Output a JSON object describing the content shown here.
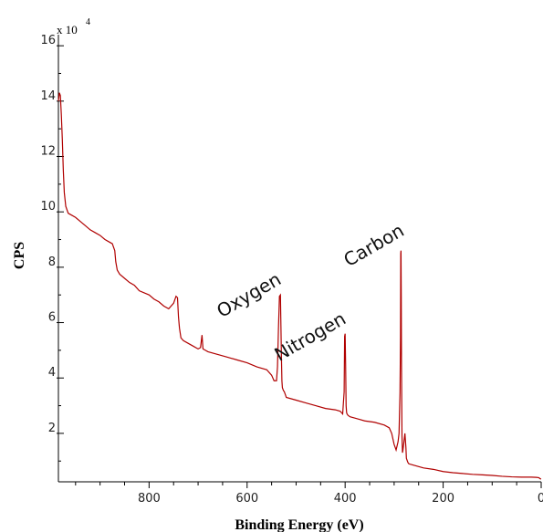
{
  "chart_data": {
    "type": "line",
    "title": "",
    "xlabel": "Binding Energy (eV)",
    "ylabel": "CPS",
    "y_multiplier": {
      "base": "x 10",
      "exponent": "4"
    },
    "x_reversed": true,
    "xlim": [
      985,
      0
    ],
    "ylim": [
      0.25,
      16.4
    ],
    "x_ticks": [
      800,
      600,
      400,
      200,
      0
    ],
    "y_ticks": [
      2,
      4,
      6,
      8,
      10,
      12,
      14,
      16
    ],
    "line_color": "#b00000",
    "grid": false,
    "legend": "none",
    "series": [
      {
        "x": [
          985,
          983,
          981,
          979,
          977,
          975,
          973,
          970,
          965,
          960,
          950,
          940,
          930,
          920,
          910,
          900,
          890,
          880,
          875,
          870,
          868,
          865,
          860,
          850,
          840,
          830,
          820,
          800,
          790,
          780,
          770,
          760,
          750,
          745,
          742,
          740,
          738,
          735,
          730,
          720,
          710,
          700,
          695,
          692,
          690,
          685,
          680,
          660,
          640,
          620,
          600,
          580,
          560,
          550,
          545,
          540,
          538,
          536,
          534,
          532,
          531,
          530,
          529,
          528,
          526,
          524,
          522,
          520,
          500,
          480,
          460,
          440,
          420,
          410,
          405,
          402,
          401,
          400,
          399,
          398,
          397,
          396,
          394,
          390,
          380,
          370,
          360,
          340,
          320,
          310,
          305,
          300,
          298,
          296,
          294,
          292,
          290,
          288,
          287,
          286.5,
          286,
          285.5,
          285,
          284,
          283,
          282,
          280,
          278,
          276,
          275,
          272,
          270,
          260,
          250,
          240,
          220,
          200,
          180,
          160,
          140,
          120,
          100,
          80,
          60,
          40,
          20,
          10,
          5,
          2,
          0
        ],
        "y": [
          14.0,
          14.3,
          14.2,
          13.5,
          12.6,
          11.5,
          10.7,
          10.2,
          9.95,
          9.9,
          9.8,
          9.65,
          9.5,
          9.35,
          9.25,
          9.15,
          9.0,
          8.9,
          8.85,
          8.6,
          8.2,
          7.9,
          7.75,
          7.6,
          7.45,
          7.35,
          7.15,
          7.0,
          6.85,
          6.75,
          6.6,
          6.5,
          6.7,
          6.95,
          6.9,
          6.2,
          5.8,
          5.45,
          5.35,
          5.25,
          5.15,
          5.05,
          5.1,
          5.55,
          5.05,
          5.0,
          4.95,
          4.85,
          4.75,
          4.65,
          4.55,
          4.4,
          4.3,
          4.1,
          3.9,
          3.9,
          4.4,
          5.8,
          6.95,
          7.0,
          5.9,
          4.8,
          3.9,
          3.65,
          3.55,
          3.5,
          3.4,
          3.3,
          3.2,
          3.1,
          3.0,
          2.9,
          2.85,
          2.8,
          2.7,
          3.5,
          5.5,
          5.6,
          4.5,
          3.0,
          2.75,
          2.7,
          2.65,
          2.6,
          2.55,
          2.5,
          2.45,
          2.4,
          2.3,
          2.2,
          2.0,
          1.6,
          1.5,
          1.4,
          1.55,
          1.7,
          2.0,
          3.5,
          5.5,
          8.5,
          8.6,
          7.0,
          4.5,
          1.9,
          1.3,
          1.4,
          1.7,
          2.0,
          1.5,
          1.1,
          0.95,
          0.9,
          0.85,
          0.8,
          0.75,
          0.7,
          0.62,
          0.58,
          0.55,
          0.52,
          0.5,
          0.48,
          0.45,
          0.43,
          0.42,
          0.42,
          0.41,
          0.4,
          0.36,
          0.35
        ]
      }
    ],
    "annotations": [
      {
        "text": "Oxygen",
        "x": 590,
        "y": 6.8,
        "angle": -30
      },
      {
        "text": "Nitrogen",
        "x": 465,
        "y": 5.3,
        "angle": -30
      },
      {
        "text": "Carbon",
        "x": 335,
        "y": 8.6,
        "angle": -30
      }
    ]
  }
}
